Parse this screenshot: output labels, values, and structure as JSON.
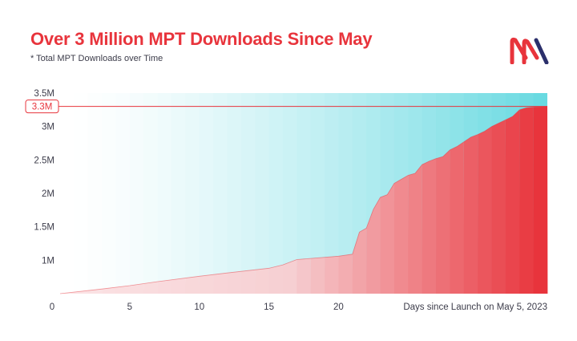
{
  "header": {
    "title": "Over 3 Million MPT Downloads Since May",
    "subtitle": "* Total MPT Downloads over Time"
  },
  "logo": {
    "icon": "mpt-logo-icon",
    "colors": [
      "#e8343c",
      "#2b2f6b"
    ]
  },
  "colors": {
    "fill_start": "#f6cfd2",
    "fill_end": "#e8343c",
    "band_start": "#ffffff",
    "band_end": "#4fd3dc",
    "highlight": "#e8343c",
    "text": "#3c3c4a"
  },
  "chart_data": {
    "type": "area",
    "title": "Over 3 Million MPT Downloads Since May",
    "subtitle": "* Total MPT Downloads over Time",
    "xlabel": "Days since Launch on May 5, 2023",
    "ylabel": "",
    "xlim": [
      0,
      35
    ],
    "ylim": [
      0.5,
      3.5
    ],
    "x_ticks": [
      0,
      5,
      10,
      15,
      20
    ],
    "x_tick_labels": [
      "0",
      "5",
      "10",
      "15",
      "20"
    ],
    "y_ticks": [
      1,
      1.5,
      2,
      2.5,
      3,
      3.5
    ],
    "y_tick_labels": [
      "1M",
      "1.5M",
      "2M",
      "2.5M",
      "3M",
      "3.5M"
    ],
    "highlight": {
      "value": 3.3,
      "label": "3.3M"
    },
    "grid": false,
    "series": [
      {
        "x": [
          0,
          3,
          5,
          7,
          10,
          12,
          15,
          16,
          17,
          20,
          21,
          21.5,
          22,
          22.5,
          23,
          23.5,
          24,
          24.5,
          25,
          25.5,
          26,
          26.5,
          27,
          27.5,
          28,
          28.5,
          29,
          29.5,
          30,
          30.5,
          31,
          31.5,
          32,
          32.5,
          33,
          33.5,
          34,
          35
        ],
        "values": [
          0.5,
          0.57,
          0.62,
          0.68,
          0.76,
          0.81,
          0.88,
          0.93,
          1.01,
          1.06,
          1.09,
          1.42,
          1.48,
          1.76,
          1.94,
          1.98,
          2.15,
          2.21,
          2.27,
          2.3,
          2.43,
          2.48,
          2.52,
          2.55,
          2.65,
          2.7,
          2.77,
          2.84,
          2.88,
          2.93,
          3.0,
          3.05,
          3.1,
          3.15,
          3.25,
          3.28,
          3.29,
          3.3
        ]
      }
    ]
  }
}
